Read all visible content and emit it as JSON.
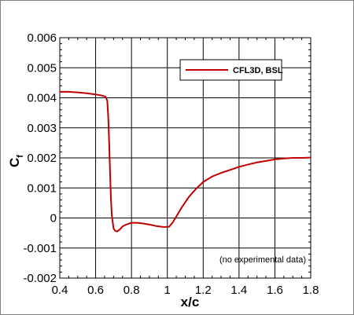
{
  "chart_data": {
    "type": "line",
    "xlabel": "x/c",
    "ylabel_main": "C",
    "ylabel_sub": "f",
    "xlim": [
      0.4,
      1.8
    ],
    "ylim": [
      -0.002,
      0.006
    ],
    "xticks": [
      "0.4",
      "0.6",
      "0.8",
      "1",
      "1.2",
      "1.4",
      "1.6",
      "1.8"
    ],
    "yticks": [
      "-0.002",
      "-0.001",
      "0",
      "0.001",
      "0.002",
      "0.003",
      "0.004",
      "0.005",
      "0.006"
    ],
    "grid": true,
    "legend_position": "top-right",
    "annotation": "(no experimental data)",
    "colors": {
      "series": "#c00000",
      "grid": "#000000",
      "frame": "#7f7f7f"
    },
    "series": [
      {
        "name": "CFL3D, BSL",
        "x": [
          0.4,
          0.45,
          0.5,
          0.55,
          0.6,
          0.63,
          0.655,
          0.665,
          0.67,
          0.675,
          0.68,
          0.685,
          0.69,
          0.7,
          0.71,
          0.72,
          0.735,
          0.75,
          0.77,
          0.8,
          0.83,
          0.86,
          0.9,
          0.94,
          0.98,
          1.01,
          1.03,
          1.05,
          1.08,
          1.12,
          1.16,
          1.2,
          1.25,
          1.3,
          1.35,
          1.4,
          1.45,
          1.5,
          1.55,
          1.6,
          1.65,
          1.7,
          1.75,
          1.8
        ],
        "y": [
          0.0042,
          0.0042,
          0.00418,
          0.00415,
          0.00411,
          0.00408,
          0.00404,
          0.0039,
          0.0034,
          0.0026,
          0.0016,
          0.0007,
          0.0001,
          -0.00035,
          -0.00043,
          -0.00045,
          -0.00038,
          -0.00028,
          -0.00022,
          -0.00016,
          -0.00016,
          -0.00018,
          -0.00022,
          -0.00027,
          -0.0003,
          -0.00029,
          -0.00015,
          5e-05,
          0.00035,
          0.0007,
          0.00097,
          0.0012,
          0.00138,
          0.0015,
          0.0016,
          0.0017,
          0.00178,
          0.00185,
          0.0019,
          0.00195,
          0.00198,
          0.002,
          0.002,
          0.00201
        ]
      }
    ]
  }
}
